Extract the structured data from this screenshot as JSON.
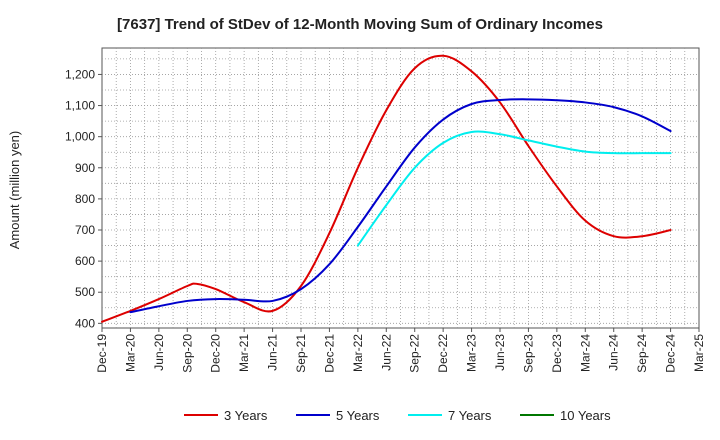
{
  "chart_data": {
    "type": "line",
    "title": "[7637]  Trend of StDev of 12-Month Moving Sum of Ordinary Incomes",
    "xlabel": "",
    "ylabel": "Amount (million yen)",
    "categories": [
      "Dec-19",
      "Mar-20",
      "Jun-20",
      "Sep-20",
      "Dec-20",
      "Mar-21",
      "Jun-21",
      "Sep-21",
      "Dec-21",
      "Mar-22",
      "Jun-22",
      "Sep-22",
      "Dec-22",
      "Mar-23",
      "Jun-23",
      "Sep-23",
      "Dec-23",
      "Mar-24",
      "Jun-24",
      "Sep-24",
      "Dec-24",
      "Mar-25"
    ],
    "yticks": [
      400,
      500,
      600,
      700,
      800,
      900,
      1000,
      1100,
      1200
    ],
    "ytick_labels": [
      "400",
      "500",
      "600",
      "700",
      "800",
      "900",
      "1,000",
      "1,100",
      "1,200"
    ],
    "ylim": [
      385,
      1285
    ],
    "grid": true,
    "legend_position": "bottom",
    "series": [
      {
        "name": "3 Years",
        "color": "#dd0000",
        "x": [
          "Dec-19",
          "Mar-20",
          "Jun-20",
          "Sep-20",
          "Oct-20",
          "Dec-20",
          "Mar-21",
          "Jun-21",
          "Sep-21",
          "Dec-21",
          "Mar-22",
          "Jun-22",
          "Sep-22",
          "Dec-22",
          "Mar-23",
          "Jun-23",
          "Sep-23",
          "Dec-23",
          "Mar-24",
          "Jun-24",
          "Sep-24",
          "Dec-24"
        ],
        "values": [
          405,
          440,
          478,
          520,
          527,
          510,
          468,
          440,
          520,
          690,
          900,
          1085,
          1220,
          1260,
          1210,
          1110,
          970,
          840,
          730,
          680,
          680,
          700
        ]
      },
      {
        "name": "5 Years",
        "color": "#0000cc",
        "x": [
          "Mar-20",
          "Jun-20",
          "Sep-20",
          "Dec-20",
          "Mar-21",
          "Jun-21",
          "Sep-21",
          "Dec-21",
          "Mar-22",
          "Jun-22",
          "Sep-22",
          "Dec-22",
          "Mar-23",
          "Jun-23",
          "Sep-23",
          "Dec-23",
          "Mar-24",
          "Jun-24",
          "Sep-24",
          "Dec-24"
        ],
        "values": [
          436,
          455,
          472,
          478,
          476,
          472,
          510,
          590,
          710,
          840,
          965,
          1055,
          1105,
          1118,
          1120,
          1117,
          1110,
          1095,
          1065,
          1018
        ]
      },
      {
        "name": "7 Years",
        "color": "#00eeee",
        "x": [
          "Mar-22",
          "Jun-22",
          "Sep-22",
          "Dec-22",
          "Mar-23",
          "Jun-23",
          "Sep-23",
          "Dec-23",
          "Mar-24",
          "Jun-24",
          "Sep-24",
          "Dec-24"
        ],
        "values": [
          650,
          780,
          900,
          980,
          1015,
          1008,
          988,
          968,
          952,
          947,
          947,
          947
        ]
      },
      {
        "name": "10 Years",
        "color": "#007700",
        "x": [],
        "values": []
      }
    ]
  }
}
